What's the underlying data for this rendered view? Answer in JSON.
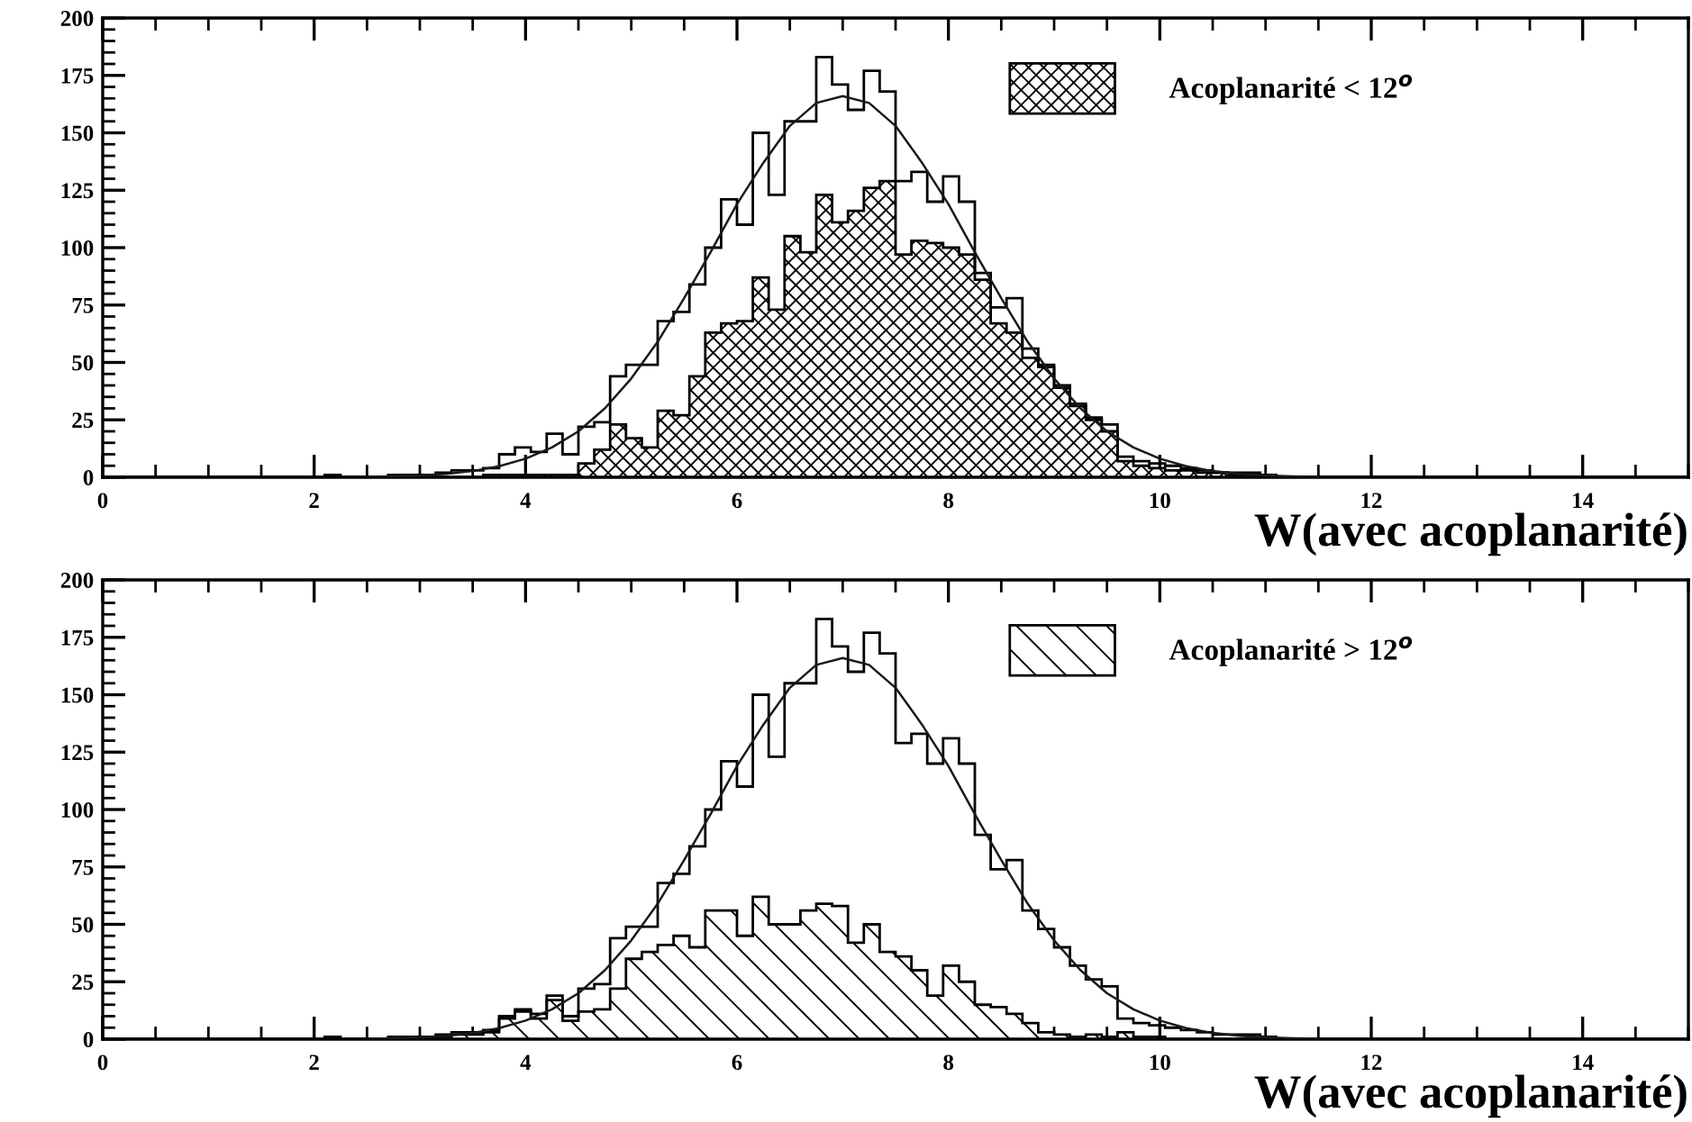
{
  "chart_data": [
    {
      "type": "histogram",
      "xlabel": "W(avec acoplanarité)",
      "xlim": [
        0,
        15
      ],
      "xticks": [
        0,
        2,
        4,
        6,
        8,
        10,
        12,
        14
      ],
      "ylim": [
        0,
        200
      ],
      "yticks": [
        0,
        25,
        50,
        75,
        100,
        125,
        150,
        175,
        200
      ],
      "grid": false,
      "legend": "top right",
      "bins": [
        0,
        0.15,
        0.3,
        0.45,
        0.6,
        0.75,
        0.9,
        1.05,
        1.2,
        1.35,
        1.5,
        1.65,
        1.8,
        1.95,
        2.1,
        2.25,
        2.4,
        2.55,
        2.7,
        2.85,
        3,
        3.15,
        3.3,
        3.45,
        3.6,
        3.75,
        3.9,
        4.05,
        4.2,
        4.35,
        4.5,
        4.65,
        4.8,
        4.95,
        5.1,
        5.25,
        5.4,
        5.55,
        5.7,
        5.85,
        6,
        6.15,
        6.3,
        6.45,
        6.6,
        6.75,
        6.9,
        7.05,
        7.2,
        7.35,
        7.5,
        7.65,
        7.8,
        7.95,
        8.1,
        8.25,
        8.4,
        8.55,
        8.7,
        8.85,
        9,
        9.15,
        9.3,
        9.45,
        9.6,
        9.75,
        9.9,
        10.05,
        10.2,
        10.35,
        10.5,
        10.65,
        10.8,
        10.95,
        11.1,
        11.25,
        11.4,
        11.55,
        11.7,
        11.85,
        12,
        12.15,
        12.3,
        12.45,
        12.6,
        12.75,
        12.9,
        13.05,
        13.2,
        13.35,
        13.5,
        13.65,
        13.8,
        13.95,
        14.1,
        14.25,
        14.4,
        14.55,
        14.7,
        14.85,
        15
      ],
      "series": [
        {
          "color": "#000000",
          "values": [
            0,
            0,
            0,
            0,
            0,
            0,
            0,
            0,
            0,
            0,
            0,
            0,
            0,
            0,
            1,
            0,
            0,
            0,
            1,
            1,
            1,
            2,
            3,
            3,
            4,
            10,
            13,
            11,
            19,
            10,
            22,
            24,
            44,
            49,
            49,
            68,
            72,
            84,
            100,
            121,
            110,
            150,
            123,
            155,
            155,
            183,
            171,
            160,
            177,
            168,
            129,
            133,
            120,
            131,
            120,
            89,
            74,
            78,
            56,
            48,
            40,
            32,
            26,
            23,
            9,
            7,
            6,
            5,
            4,
            3,
            2,
            2,
            2,
            1,
            0,
            0,
            0,
            0,
            0,
            0,
            0,
            0,
            0,
            0,
            0,
            0,
            0,
            0,
            0,
            0,
            0,
            0,
            0,
            0,
            0,
            0,
            0,
            0,
            0,
            0
          ]
        },
        {
          "name": "Acoplanarité < 12$^{o}$",
          "color": "#000000",
          "values": [
            0,
            0,
            0,
            0,
            0,
            0,
            0,
            0,
            0,
            0,
            0,
            0,
            0,
            0,
            0,
            0,
            0,
            0,
            0,
            0,
            0,
            0,
            0,
            0,
            1,
            1,
            1,
            1,
            1,
            1,
            6,
            12,
            23,
            17,
            13,
            29,
            27,
            44,
            63,
            67,
            68,
            87,
            73,
            105,
            98,
            123,
            111,
            116,
            126,
            129,
            97,
            103,
            102,
            100,
            97,
            86,
            67,
            63,
            52,
            49,
            39,
            31,
            25,
            20,
            7,
            5,
            4,
            3,
            3,
            2,
            2,
            1,
            1,
            1,
            0,
            0,
            0,
            0,
            0,
            0,
            0,
            0,
            0,
            0,
            0,
            0,
            0,
            0,
            0,
            0,
            0,
            0,
            0,
            0,
            0,
            0,
            0,
            0,
            0,
            0
          ]
        },
        {
          "type": "line",
          "color": "#1a1a1a",
          "x": [
            2.5,
            2.75,
            3,
            3.25,
            3.5,
            3.75,
            4,
            4.25,
            4.5,
            4.75,
            5,
            5.25,
            5.5,
            5.75,
            6,
            6.25,
            6.5,
            6.75,
            7,
            7.25,
            7.5,
            7.75,
            8,
            8.25,
            8.5,
            8.75,
            9,
            9.25,
            9.5,
            9.75,
            10,
            10.25,
            10.5,
            10.75,
            11,
            11.25,
            11.5
          ],
          "values": [
            0.2,
            0.4,
            0.8,
            1.5,
            2.7,
            4.8,
            8.1,
            13,
            20,
            30,
            43,
            59,
            78,
            98,
            119,
            137,
            153,
            163,
            166,
            163,
            153,
            137,
            119,
            98,
            78,
            59,
            43,
            30,
            20,
            13,
            8.1,
            4.8,
            2.7,
            1.5,
            0.8,
            0.4,
            0.2
          ]
        }
      ]
    },
    {
      "type": "histogram",
      "xlabel": "W(avec acoplanarité)",
      "xlim": [
        0,
        15
      ],
      "xticks": [
        0,
        2,
        4,
        6,
        8,
        10,
        12,
        14
      ],
      "ylim": [
        0,
        200
      ],
      "yticks": [
        0,
        25,
        50,
        75,
        100,
        125,
        150,
        175,
        200
      ],
      "grid": false,
      "legend": "top right",
      "bins": [
        0,
        0.15,
        0.3,
        0.45,
        0.6,
        0.75,
        0.9,
        1.05,
        1.2,
        1.35,
        1.5,
        1.65,
        1.8,
        1.95,
        2.1,
        2.25,
        2.4,
        2.55,
        2.7,
        2.85,
        3,
        3.15,
        3.3,
        3.45,
        3.6,
        3.75,
        3.9,
        4.05,
        4.2,
        4.35,
        4.5,
        4.65,
        4.8,
        4.95,
        5.1,
        5.25,
        5.4,
        5.55,
        5.7,
        5.85,
        6,
        6.15,
        6.3,
        6.45,
        6.6,
        6.75,
        6.9,
        7.05,
        7.2,
        7.35,
        7.5,
        7.65,
        7.8,
        7.95,
        8.1,
        8.25,
        8.4,
        8.55,
        8.7,
        8.85,
        9,
        9.15,
        9.3,
        9.45,
        9.6,
        9.75,
        9.9,
        10.05,
        10.2,
        10.35,
        10.5,
        10.65,
        10.8,
        10.95,
        11.1,
        11.25,
        11.4,
        11.55,
        11.7,
        11.85,
        12,
        12.15,
        12.3,
        12.45,
        12.6,
        12.75,
        12.9,
        13.05,
        13.2,
        13.35,
        13.5,
        13.65,
        13.8,
        13.95,
        14.1,
        14.25,
        14.4,
        14.55,
        14.7,
        14.85,
        15
      ],
      "series": [
        {
          "color": "#000000",
          "values": [
            0,
            0,
            0,
            0,
            0,
            0,
            0,
            0,
            0,
            0,
            0,
            0,
            0,
            0,
            1,
            0,
            0,
            0,
            1,
            1,
            1,
            2,
            3,
            3,
            4,
            10,
            13,
            11,
            19,
            10,
            22,
            24,
            44,
            49,
            49,
            68,
            72,
            84,
            100,
            121,
            110,
            150,
            123,
            155,
            155,
            183,
            171,
            160,
            177,
            168,
            129,
            133,
            120,
            131,
            120,
            89,
            74,
            78,
            56,
            48,
            40,
            32,
            26,
            23,
            9,
            7,
            6,
            5,
            4,
            3,
            2,
            2,
            2,
            1,
            0,
            0,
            0,
            0,
            0,
            0,
            0,
            0,
            0,
            0,
            0,
            0,
            0,
            0,
            0,
            0,
            0,
            0,
            0,
            0,
            0,
            0,
            0,
            0,
            0,
            0
          ]
        },
        {
          "name": "Acoplanarité > 12$^{o}$",
          "color": "#000000",
          "values": [
            0,
            0,
            0,
            0,
            0,
            0,
            0,
            0,
            0,
            0,
            0,
            0,
            0,
            0,
            0,
            0,
            0,
            0,
            0,
            0,
            1,
            1,
            2,
            2,
            3,
            9,
            12,
            9,
            17,
            8,
            12,
            13,
            22,
            35,
            38,
            41,
            45,
            40,
            56,
            56,
            45,
            62,
            50,
            50,
            56,
            59,
            58,
            42,
            50,
            38,
            36,
            30,
            19,
            32,
            25,
            15,
            14,
            11,
            7,
            3,
            2,
            1,
            2,
            1,
            3,
            1,
            1,
            0,
            0,
            0,
            0,
            0,
            0,
            0,
            0,
            0,
            0,
            0,
            0,
            0,
            0,
            0,
            0,
            0,
            0,
            0,
            0,
            0,
            0,
            0,
            0,
            0,
            0,
            0,
            0,
            0,
            0,
            0,
            0,
            0
          ]
        },
        {
          "type": "line",
          "color": "#1a1a1a",
          "x": [
            2.5,
            2.75,
            3,
            3.25,
            3.5,
            3.75,
            4,
            4.25,
            4.5,
            4.75,
            5,
            5.25,
            5.5,
            5.75,
            6,
            6.25,
            6.5,
            6.75,
            7,
            7.25,
            7.5,
            7.75,
            8,
            8.25,
            8.5,
            8.75,
            9,
            9.25,
            9.5,
            9.75,
            10,
            10.25,
            10.5,
            10.75,
            11,
            11.25,
            11.5
          ],
          "values": [
            0.2,
            0.4,
            0.8,
            1.5,
            2.7,
            4.8,
            8.1,
            13,
            20,
            30,
            43,
            59,
            78,
            98,
            119,
            137,
            153,
            163,
            166,
            163,
            153,
            137,
            119,
            98,
            78,
            59,
            43,
            30,
            20,
            13,
            8.1,
            4.8,
            2.7,
            1.5,
            0.8,
            0.4,
            0.2
          ]
        }
      ]
    }
  ]
}
